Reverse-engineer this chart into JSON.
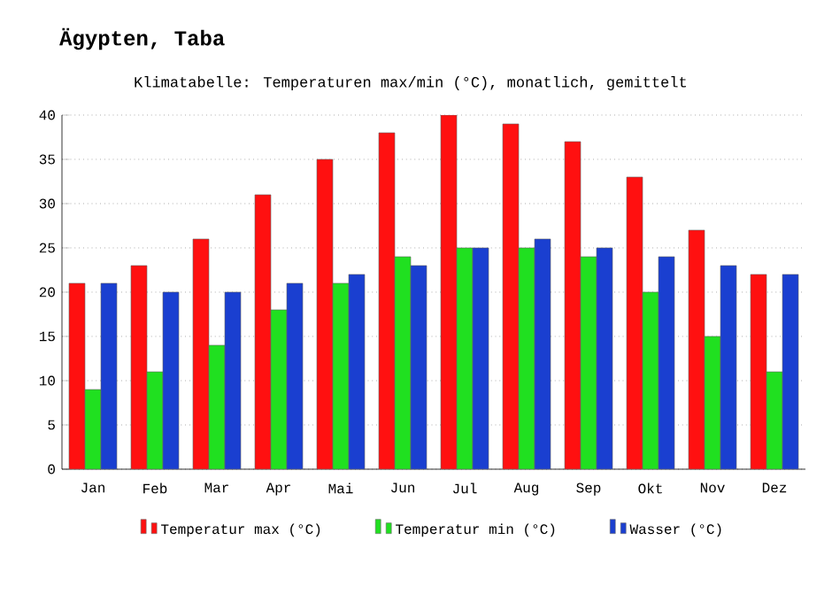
{
  "chart_data": {
    "type": "bar",
    "title": "Ägypten, Taba",
    "subtitle": "Klimatabelle: Temperaturen max/min (°C), monatlich, gemittelt",
    "categories": [
      "Jan",
      "Feb",
      "Mar",
      "Apr",
      "Mai",
      "Jun",
      "Jul",
      "Aug",
      "Sep",
      "Okt",
      "Nov",
      "Dez"
    ],
    "series": [
      {
        "name": "Temperatur max (°C)",
        "color": "#ff1010",
        "values": [
          21,
          23,
          26,
          31,
          35,
          38,
          40,
          39,
          37,
          33,
          27,
          22
        ]
      },
      {
        "name": "Temperatur min (°C)",
        "color": "#20e020",
        "values": [
          9,
          11,
          14,
          18,
          21,
          24,
          25,
          25,
          24,
          20,
          15,
          11
        ]
      },
      {
        "name": "Wasser (°C)",
        "color": "#1a3fd0",
        "values": [
          21,
          20,
          20,
          21,
          22,
          23,
          25,
          26,
          25,
          24,
          23,
          22
        ]
      }
    ],
    "ylim": [
      0,
      40
    ],
    "yticks": [
      0,
      5,
      10,
      15,
      20,
      25,
      30,
      35,
      40
    ],
    "grid": "y",
    "legend": "bottom"
  }
}
